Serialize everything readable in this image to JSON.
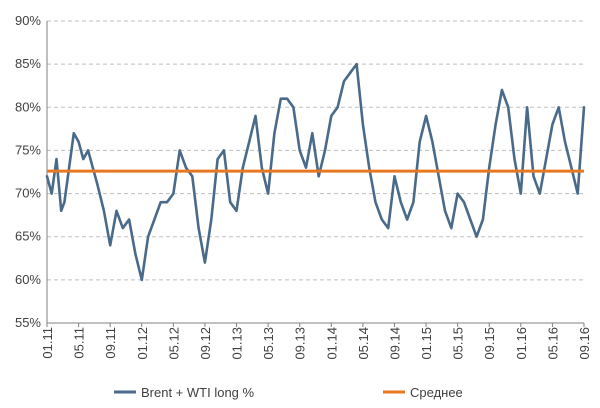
{
  "chart_data": {
    "type": "line",
    "title": "",
    "xlabel": "",
    "ylabel": "",
    "ylim": [
      55,
      90
    ],
    "y_ticks": [
      "55%",
      "60%",
      "65%",
      "70%",
      "75%",
      "80%",
      "85%",
      "90%"
    ],
    "x_ticks": [
      "01.11",
      "05.11",
      "09.11",
      "01.12",
      "05.12",
      "09.12",
      "01.13",
      "05.13",
      "09.13",
      "01.14",
      "05.14",
      "09.14",
      "01.15",
      "05.15",
      "09.15",
      "01.16",
      "05.16",
      "09.16"
    ],
    "grid": "horizontal dashed",
    "legend_position": "bottom",
    "colors": {
      "series": "#4A6A8A",
      "average": "#E87722",
      "grid": "#BFBFBF",
      "axis": "#808080"
    },
    "series": [
      {
        "name": "Brent + WTI long %",
        "x": [
          0,
          0.15,
          0.3,
          0.45,
          0.55,
          0.7,
          0.85,
          1.0,
          1.15,
          1.3,
          1.45,
          1.6,
          1.8,
          2.0,
          2.2,
          2.4,
          2.6,
          2.8,
          3.0,
          3.2,
          3.4,
          3.6,
          3.8,
          4.0,
          4.2,
          4.4,
          4.6,
          4.8,
          5.0,
          5.2,
          5.4,
          5.6,
          5.8,
          6.0,
          6.2,
          6.4,
          6.6,
          6.8,
          7.0,
          7.2,
          7.4,
          7.6,
          7.8,
          8.0,
          8.2,
          8.4,
          8.6,
          8.8,
          9.0,
          9.2,
          9.4,
          9.6,
          9.8,
          10.0,
          10.2,
          10.4,
          10.6,
          10.8,
          11.0,
          11.2,
          11.4,
          11.6,
          11.8,
          12.0,
          12.2,
          12.4,
          12.6,
          12.8,
          13.0,
          13.2,
          13.4,
          13.6,
          13.8,
          14.0,
          14.2,
          14.4,
          14.6,
          14.8,
          15.0,
          15.2,
          15.4,
          15.6,
          15.8,
          16.0,
          16.2,
          16.4,
          16.6,
          16.8,
          17.0
        ],
        "values": [
          72,
          70,
          74,
          68,
          69,
          73,
          77,
          76,
          74,
          75,
          73,
          71,
          68,
          64,
          68,
          66,
          67,
          63,
          60,
          65,
          67,
          69,
          69,
          70,
          75,
          73,
          72,
          66,
          62,
          67,
          74,
          75,
          69,
          68,
          73,
          76,
          79,
          73,
          70,
          77,
          81,
          81,
          80,
          75,
          73,
          77,
          72,
          75,
          79,
          80,
          83,
          84,
          85,
          78,
          73,
          69,
          67,
          66,
          72,
          69,
          67,
          69,
          76,
          79,
          76,
          72,
          68,
          66,
          70,
          69,
          67,
          65,
          67,
          73,
          78,
          82,
          80,
          74,
          70,
          80,
          72,
          70,
          74,
          78,
          80,
          76,
          73,
          70,
          80
        ]
      },
      {
        "name": "Среднее",
        "x": [
          0,
          17
        ],
        "values": [
          72.6,
          72.6
        ]
      }
    ]
  }
}
